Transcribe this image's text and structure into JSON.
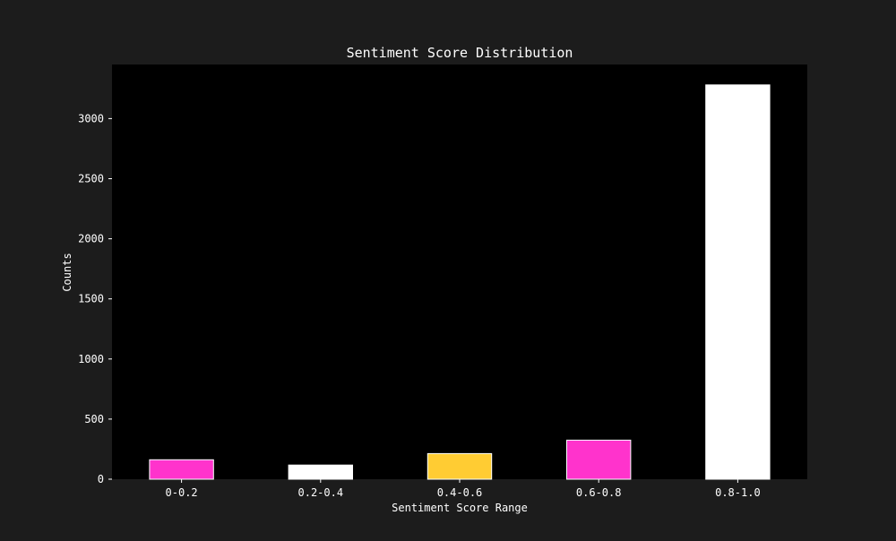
{
  "chart_data": {
    "type": "bar",
    "title": "Sentiment Score Distribution",
    "xlabel": "Sentiment Score Range",
    "ylabel": "Counts",
    "categories": [
      "0-0.2",
      "0.2-0.4",
      "0.4-0.6",
      "0.6-0.8",
      "0.8-1.0"
    ],
    "values": [
      162,
      118,
      213,
      325,
      3280
    ],
    "bar_colors": [
      "#ff33cc",
      "#ffffff",
      "#ffcc33",
      "#ff33cc",
      "#ffffff"
    ],
    "ylim": [
      0,
      3450
    ],
    "yticks": [
      0,
      500,
      1000,
      1500,
      2000,
      2500,
      3000
    ],
    "grid": false,
    "background": "#1c1c1c",
    "plot_background": "#000000"
  }
}
